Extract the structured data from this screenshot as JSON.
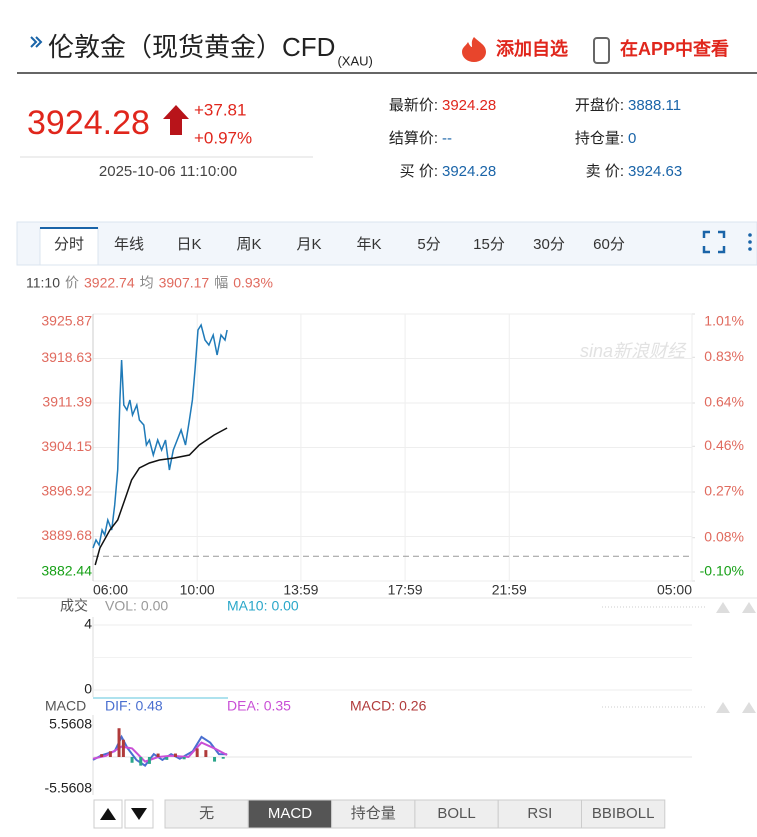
{
  "header": {
    "title": "伦敦金（现货黄金）CFD",
    "code": "(XAU)",
    "add_watchlist": "添加自选",
    "open_app": "在APP中查看"
  },
  "quote": {
    "price": "3924.28",
    "change": "+37.81",
    "change_pct": "+0.97%",
    "time": "2025-10-06 11:10:00",
    "fields": [
      {
        "label": "最新价:",
        "value": "3924.28",
        "color": "#e0261c"
      },
      {
        "label": "开盘价:",
        "value": "3888.11",
        "color": "#1a64a8"
      },
      {
        "label": "结算价:",
        "value": "--",
        "color": "#1a64a8"
      },
      {
        "label": "持仓量:",
        "value": "0",
        "color": "#1a64a8"
      },
      {
        "label": "买 价:",
        "value": "3924.28",
        "color": "#1a64a8"
      },
      {
        "label": "卖 价:",
        "value": "3924.63",
        "color": "#1a64a8"
      }
    ]
  },
  "tabs": {
    "items": [
      "分时",
      "年线",
      "日K",
      "周K",
      "月K",
      "年K",
      "5分",
      "15分",
      "30分",
      "60分"
    ],
    "selected": 0
  },
  "chart_data": [
    {
      "type": "line",
      "cursor_time": "11:10",
      "amplitude": {
        "name": "幅",
        "value": "0.93%"
      },
      "watermark": "sina新浪财经",
      "xlim": [
        0,
        1380
      ],
      "xticks": [
        {
          "value": 0,
          "label": "06:00"
        },
        {
          "value": 240,
          "label": "10:00"
        },
        {
          "value": 479,
          "label": "13:59"
        },
        {
          "value": 719,
          "label": "17:59"
        },
        {
          "value": 959,
          "label": "21:59"
        },
        {
          "value": 1380,
          "label": "05:00"
        }
      ],
      "ylim": [
        3882.44,
        3925.87
      ],
      "yticks": [
        3882.44,
        3889.68,
        3896.92,
        3904.15,
        3911.39,
        3918.63,
        3925.87
      ],
      "y2lim": [
        -0.1,
        1.01
      ],
      "y2ticks": [
        {
          "value": -0.1,
          "label": "-0.10%"
        },
        {
          "value": 0.08,
          "label": "0.08%"
        },
        {
          "value": 0.27,
          "label": "0.27%"
        },
        {
          "value": 0.46,
          "label": "0.46%"
        },
        {
          "value": 0.64,
          "label": "0.64%"
        },
        {
          "value": 0.83,
          "label": "0.83%"
        },
        {
          "value": 1.01,
          "label": "1.01%"
        }
      ],
      "reference_line": 3886.47,
      "grid": true,
      "series": [
        {
          "name": "价",
          "current": "3922.74",
          "color": "#1f7ab8",
          "x": [
            0,
            7,
            14,
            21,
            27,
            34,
            43,
            50,
            57,
            62,
            66,
            71,
            78,
            85,
            91,
            101,
            107,
            117,
            123,
            130,
            139,
            149,
            158,
            167,
            176,
            185,
            194,
            203,
            213,
            222,
            229,
            235,
            242,
            249,
            258,
            267,
            277,
            286,
            295,
            304,
            309
          ],
          "values": [
            3887.81,
            3889.11,
            3888.3,
            3890.74,
            3889.92,
            3892.36,
            3890.74,
            3894.8,
            3900.5,
            3911.88,
            3918.39,
            3911.07,
            3910.25,
            3911.88,
            3909.44,
            3911.07,
            3908.63,
            3907.81,
            3904.56,
            3905.38,
            3902.94,
            3905.38,
            3903.75,
            3905.38,
            3900.5,
            3903.75,
            3905.38,
            3907.0,
            3904.56,
            3908.63,
            3911.88,
            3916.76,
            3923.27,
            3924.08,
            3921.64,
            3920.83,
            3922.45,
            3919.2,
            3922.45,
            3921.64,
            3923.27
          ]
        },
        {
          "name": "均",
          "current": "3907.17",
          "color": "#111111",
          "x": [
            5,
            16,
            39,
            57,
            73,
            89,
            107,
            130,
            153,
            187,
            222,
            245,
            279,
            309
          ],
          "values": [
            3885.04,
            3887.81,
            3890.74,
            3892.36,
            3895.62,
            3898.87,
            3900.82,
            3901.63,
            3902.12,
            3902.45,
            3902.94,
            3904.56,
            3906.19,
            3907.33
          ]
        }
      ]
    },
    {
      "type": "bar",
      "title": "成交",
      "legend": [
        {
          "name": "VOL:",
          "value": "0.00",
          "color": "#999999"
        },
        {
          "name": "MA10:",
          "value": "0.00",
          "color": "#2aa7c9"
        }
      ],
      "ylim": [
        0,
        4
      ],
      "yticks": [
        0,
        4
      ]
    },
    {
      "type": "macd",
      "title": "MACD",
      "xlim": [
        0,
        1380
      ],
      "ylim": [
        -5.5608,
        5.5608
      ],
      "yticks": [
        -5.5608,
        5.5608
      ],
      "series": [
        {
          "name": "DIF:",
          "value_label": "0.48",
          "color": "#4a6fd0",
          "kind": "line",
          "x": [
            0,
            20,
            50,
            66,
            80,
            100,
            120,
            140,
            160,
            180,
            200,
            230,
            250,
            270,
            290,
            309
          ],
          "values": [
            -0.5,
            0.3,
            1.0,
            3.5,
            1.5,
            -0.5,
            -1.5,
            0.5,
            -0.5,
            0.5,
            -0.3,
            1.0,
            3.5,
            2.5,
            0.5,
            0.48
          ]
        },
        {
          "name": "DEA:",
          "value_label": "0.35",
          "color": "#c94fd6",
          "kind": "line",
          "x": [
            0,
            30,
            66,
            90,
            120,
            150,
            180,
            220,
            250,
            280,
            309
          ],
          "values": [
            -0.3,
            0.2,
            1.8,
            1.5,
            -0.8,
            0,
            0.2,
            0,
            2.5,
            1.5,
            0.35
          ]
        },
        {
          "name": "MACD:",
          "value_label": "0.26",
          "color": "#b03a3a",
          "kind": "bar",
          "x": [
            20,
            40,
            60,
            70,
            90,
            110,
            130,
            150,
            170,
            190,
            210,
            240,
            260,
            280,
            300
          ],
          "values": [
            0.5,
            1.0,
            5.0,
            3.0,
            -1.0,
            -1.5,
            -1.2,
            0.6,
            -0.5,
            0.6,
            -0.4,
            1.5,
            1.2,
            -0.8,
            -0.3
          ]
        }
      ]
    }
  ],
  "indicator_tabs": {
    "items": [
      "无",
      "MACD",
      "持仓量",
      "BOLL",
      "RSI",
      "BBIBOLL"
    ],
    "selected": 1
  }
}
